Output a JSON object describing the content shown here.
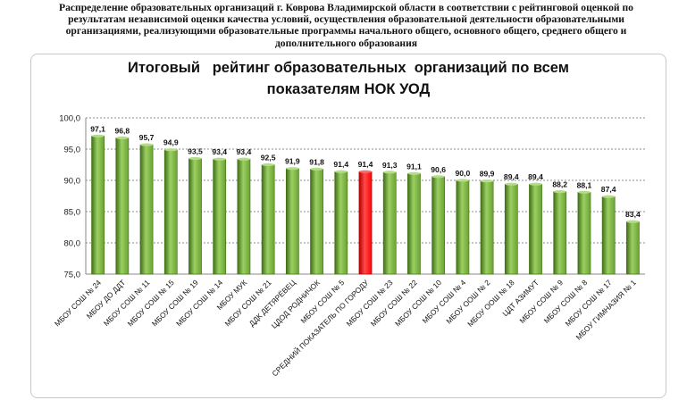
{
  "header": {
    "lines": [
      "Распределение образовательных организаций г. Коврова Владимирской области в соответствии с рейтинговой оценкой по",
      "результатам независимой оценки качества условий, осуществления образовательной деятельности образовательными",
      "организациями, реализующими образовательные программы начального общего, основного общего, среднего общего и",
      "дополнительного образования"
    ]
  },
  "chart_data": {
    "type": "bar",
    "title_lines": [
      "Итоговый   рейтинг образовательных  организаций по всем",
      "показателям НОК УОД"
    ],
    "categories": [
      "МБОУ СОШ № 24",
      "МБОУ ДО ДДТ",
      "МБОУ СОШ № 11",
      "МБОУ СОШ № 15",
      "МБОУ СОШ № 19",
      "МБОУ СОШ № 14",
      "МБОУ МУК",
      "МБОУ СОШ № 21",
      "ДДК ДЕТЯРЁВЕЦ",
      "ЦДОД РОДНИЧОК",
      "МБОУ СОШ № 5",
      "СРЕДНИЙ ПОКАЗАТЕЛЬ ПО ГОРОДУ",
      "МБОУ СОШ № 23",
      "МБОУ СОШ № 22",
      "МБОУ СОШ № 10",
      "МБОУ СОШ № 4",
      "МБОУ ООШ № 2",
      "МБОУ ООШ № 18",
      "ЦДТ АЗИМУТ",
      "МБОУ СОШ № 9",
      "МБОУ СОШ № 8",
      "МБОУ СОШ № 17",
      "МБОУ ГИМНАЗИЯ № 1"
    ],
    "values": [
      97.1,
      96.8,
      95.7,
      94.9,
      93.5,
      93.4,
      93.4,
      92.5,
      91.9,
      91.8,
      91.4,
      91.4,
      91.3,
      91.1,
      90.6,
      90.0,
      89.9,
      89.4,
      89.4,
      88.2,
      88.1,
      87.4,
      83.4
    ],
    "value_labels": [
      "97,1",
      "96,8",
      "95,7",
      "94,9",
      "93,5",
      "93,4",
      "93,4",
      "92,5",
      "91,9",
      "91,8",
      "91,4",
      "91,4",
      "91,3",
      "91,1",
      "90,6",
      "90,0",
      "89,9",
      "89,4",
      "89,4",
      "88,2",
      "88,1",
      "87,4",
      "83,4"
    ],
    "highlight_index": 11,
    "ylim": [
      75,
      100
    ],
    "yticks": [
      75,
      80,
      85,
      90,
      95,
      100
    ],
    "ytick_labels": [
      "75,0",
      "80,0",
      "85,0",
      "90,0",
      "95,0",
      "100,0"
    ],
    "grid": true,
    "legend": "none",
    "colors": {
      "bar": "#6aa332",
      "bar_dark": "#3f6f16",
      "bar_light": "#9ccf63",
      "highlight": "#ff0000",
      "highlight_dark": "#b00000",
      "grid": "#8c8c8c"
    }
  }
}
